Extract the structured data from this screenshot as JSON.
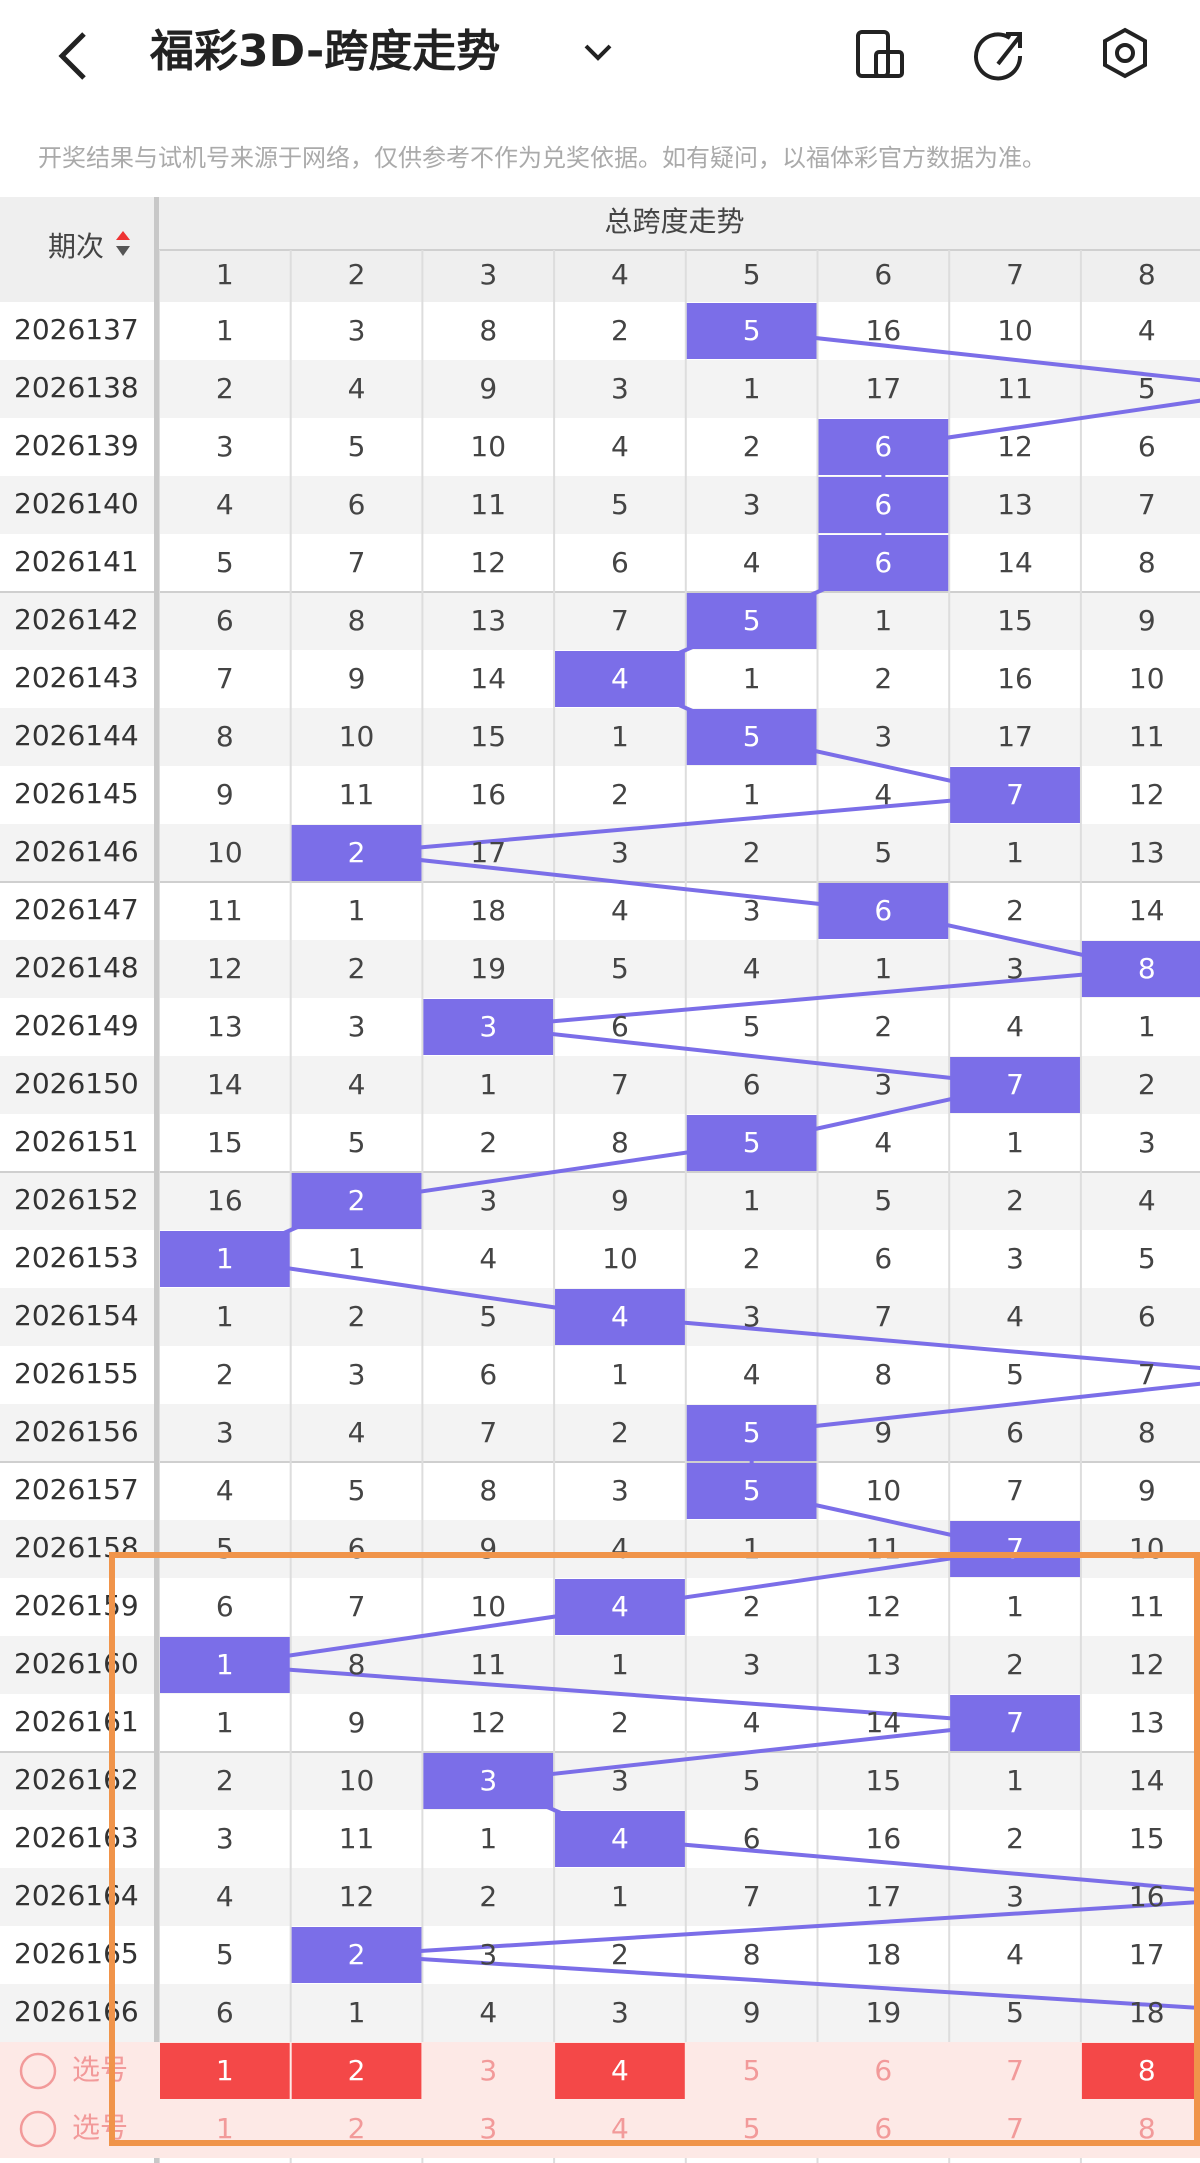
{
  "header": {
    "title": "福彩3D-跨度走势"
  },
  "notice": "开奖结果与试机号来源于网络，仅供参考不作为兑奖依据。如有疑问，以福体彩官方数据为准。",
  "table": {
    "period_header": "期次",
    "group_header": "总跨度走势",
    "columns": [
      1,
      2,
      3,
      4,
      5,
      6,
      7,
      8
    ],
    "rows": [
      {
        "period": "2026137",
        "cells": [
          1,
          3,
          8,
          2,
          5,
          16,
          10,
          4
        ],
        "hit": 5
      },
      {
        "period": "2026138",
        "cells": [
          2,
          4,
          9,
          3,
          1,
          17,
          11,
          5
        ],
        "hit": null
      },
      {
        "period": "2026139",
        "cells": [
          3,
          5,
          10,
          4,
          2,
          6,
          12,
          6
        ],
        "hit": 6
      },
      {
        "period": "2026140",
        "cells": [
          4,
          6,
          11,
          5,
          3,
          6,
          13,
          7
        ],
        "hit": 6
      },
      {
        "period": "2026141",
        "cells": [
          5,
          7,
          12,
          6,
          4,
          6,
          14,
          8
        ],
        "hit": 6
      },
      {
        "period": "2026142",
        "cells": [
          6,
          8,
          13,
          7,
          5,
          1,
          15,
          9
        ],
        "hit": 5
      },
      {
        "period": "2026143",
        "cells": [
          7,
          9,
          14,
          4,
          1,
          2,
          16,
          10
        ],
        "hit": 4
      },
      {
        "period": "2026144",
        "cells": [
          8,
          10,
          15,
          1,
          5,
          3,
          17,
          11
        ],
        "hit": 5
      },
      {
        "period": "2026145",
        "cells": [
          9,
          11,
          16,
          2,
          1,
          4,
          7,
          12
        ],
        "hit": 7
      },
      {
        "period": "2026146",
        "cells": [
          10,
          2,
          17,
          3,
          2,
          5,
          1,
          13
        ],
        "hit": 2
      },
      {
        "period": "2026147",
        "cells": [
          11,
          1,
          18,
          4,
          3,
          6,
          2,
          14
        ],
        "hit": 6
      },
      {
        "period": "2026148",
        "cells": [
          12,
          2,
          19,
          5,
          4,
          1,
          3,
          8
        ],
        "hit": 8
      },
      {
        "period": "2026149",
        "cells": [
          13,
          3,
          3,
          6,
          5,
          2,
          4,
          1
        ],
        "hit": 3
      },
      {
        "period": "2026150",
        "cells": [
          14,
          4,
          1,
          7,
          6,
          3,
          7,
          2
        ],
        "hit": 7
      },
      {
        "period": "2026151",
        "cells": [
          15,
          5,
          2,
          8,
          5,
          4,
          1,
          3
        ],
        "hit": 5
      },
      {
        "period": "2026152",
        "cells": [
          16,
          2,
          3,
          9,
          1,
          5,
          2,
          4
        ],
        "hit": 2
      },
      {
        "period": "2026153",
        "cells": [
          1,
          1,
          4,
          10,
          2,
          6,
          3,
          5
        ],
        "hit": 1
      },
      {
        "period": "2026154",
        "cells": [
          1,
          2,
          5,
          4,
          3,
          7,
          4,
          6
        ],
        "hit": 4
      },
      {
        "period": "2026155",
        "cells": [
          2,
          3,
          6,
          1,
          4,
          8,
          5,
          7
        ],
        "hit": null
      },
      {
        "period": "2026156",
        "cells": [
          3,
          4,
          7,
          2,
          5,
          9,
          6,
          8
        ],
        "hit": 5
      },
      {
        "period": "2026157",
        "cells": [
          4,
          5,
          8,
          3,
          5,
          10,
          7,
          9
        ],
        "hit": 5
      },
      {
        "period": "2026158",
        "cells": [
          5,
          6,
          9,
          4,
          1,
          11,
          7,
          10
        ],
        "hit": 7
      },
      {
        "period": "2026159",
        "cells": [
          6,
          7,
          10,
          4,
          2,
          12,
          1,
          11
        ],
        "hit": 4
      },
      {
        "period": "2026160",
        "cells": [
          1,
          8,
          11,
          1,
          3,
          13,
          2,
          12
        ],
        "hit": 1
      },
      {
        "period": "2026161",
        "cells": [
          1,
          9,
          12,
          2,
          4,
          14,
          7,
          13
        ],
        "hit": 7
      },
      {
        "period": "2026162",
        "cells": [
          2,
          10,
          3,
          3,
          5,
          15,
          1,
          14
        ],
        "hit": 3
      },
      {
        "period": "2026163",
        "cells": [
          3,
          11,
          1,
          4,
          6,
          16,
          2,
          15
        ],
        "hit": 4
      },
      {
        "period": "2026164",
        "cells": [
          4,
          12,
          2,
          1,
          7,
          17,
          3,
          16
        ],
        "hit": null
      },
      {
        "period": "2026165",
        "cells": [
          5,
          2,
          3,
          2,
          8,
          18,
          4,
          17
        ],
        "hit": 2
      },
      {
        "period": "2026166",
        "cells": [
          6,
          1,
          4,
          3,
          9,
          19,
          5,
          18
        ],
        "hit": null
      }
    ],
    "select_rows": [
      {
        "label": "选号",
        "numbers": [
          1,
          2,
          3,
          4,
          5,
          6,
          7,
          8
        ],
        "selected": [
          true,
          true,
          false,
          true,
          false,
          false,
          false,
          true
        ]
      },
      {
        "label": "选号",
        "numbers": [
          1,
          2,
          3,
          4,
          5,
          6,
          7,
          8
        ],
        "selected": [
          false,
          false,
          false,
          false,
          false,
          false,
          false,
          false
        ]
      }
    ]
  }
}
